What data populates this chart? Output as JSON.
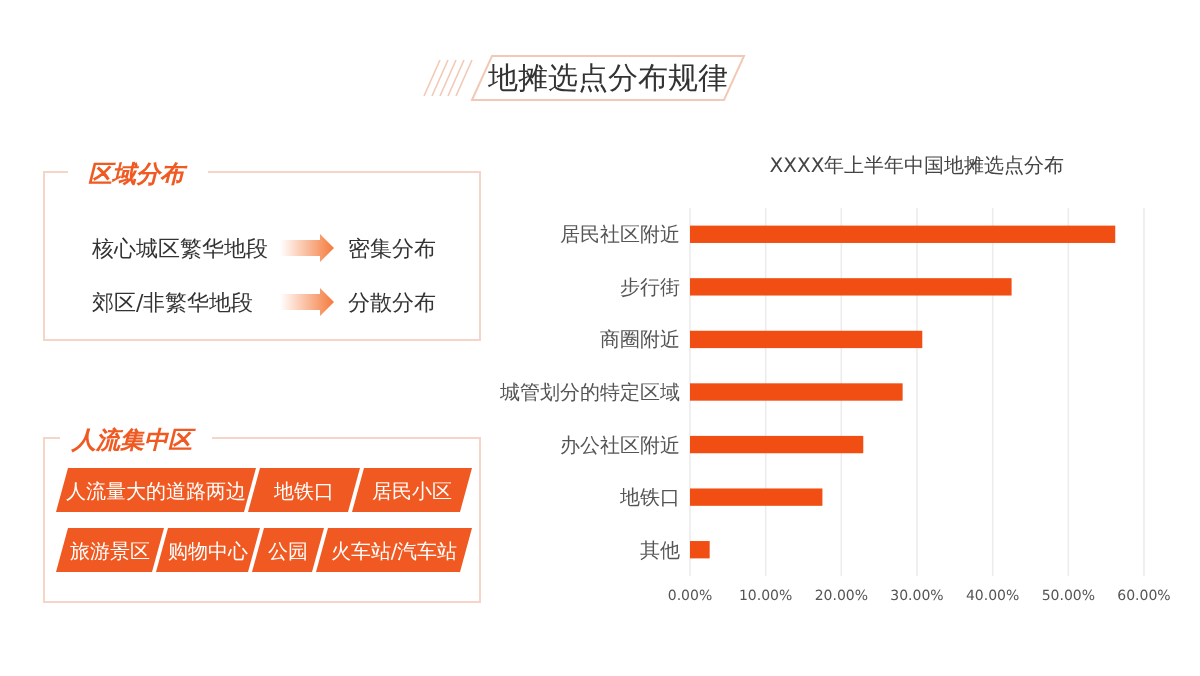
{
  "chart_data": [
    {
      "type": "other",
      "title": "地摊选点分布规律",
      "annotations": [
        "区域分布",
        "核心城区繁华地段",
        "密集分布",
        "郊区/非繁华地段",
        "分散分布",
        "人流集中区",
        "人流量大的道路两边",
        "地铁口",
        "居民小区",
        "旅游景区",
        "购物中心",
        "公园",
        "火车站/汽车站"
      ]
    },
    {
      "type": "bar",
      "orientation": "horizontal",
      "title": "XXXX年上半年中国地摊选点分布",
      "categories": [
        "居民社区附近",
        "步行街",
        "商圈附近",
        "城管划分的特定区域",
        "办公社区附近",
        "地铁口",
        "其他"
      ],
      "values": [
        56.2,
        42.5,
        30.7,
        28.1,
        22.9,
        17.5,
        2.6
      ],
      "color": "#f04e12",
      "xlim": [
        0,
        60
      ],
      "xticks": [
        {
          "value": 0,
          "label": "0.00%"
        },
        {
          "value": 10,
          "label": "10.00%"
        },
        {
          "value": 20,
          "label": "20.00%"
        },
        {
          "value": 30,
          "label": "30.00%"
        },
        {
          "value": 40,
          "label": "40.00%"
        },
        {
          "value": 50,
          "label": "50.00%"
        },
        {
          "value": 60,
          "label": "60.00%"
        }
      ],
      "grid": "x"
    }
  ]
}
